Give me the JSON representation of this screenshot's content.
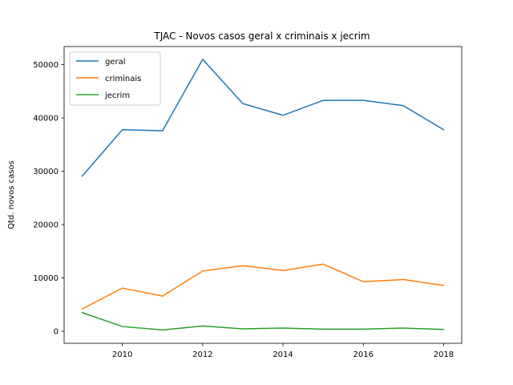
{
  "chart_data": {
    "type": "line",
    "title": "TJAC - Novos casos geral x criminais x jecrim",
    "xlabel": "",
    "ylabel": "Qtd. novos casos",
    "x": [
      2009,
      2010,
      2011,
      2012,
      2013,
      2014,
      2015,
      2016,
      2017,
      2018
    ],
    "xticks": [
      2010,
      2012,
      2014,
      2016,
      2018
    ],
    "yticks": [
      0,
      10000,
      20000,
      30000,
      40000,
      50000
    ],
    "xlim": [
      2008.55,
      2018.45
    ],
    "ylim": [
      -2250,
      53400
    ],
    "grid": false,
    "legend_position": "top-left",
    "series": [
      {
        "name": "geral",
        "color": "#1f77b4",
        "values": [
          29100,
          37800,
          37600,
          51000,
          42700,
          40500,
          43300,
          43300,
          42300,
          37800
        ]
      },
      {
        "name": "criminais",
        "color": "#ff7f0e",
        "values": [
          4200,
          8100,
          6600,
          11300,
          12300,
          11400,
          12600,
          9300,
          9700,
          8600
        ]
      },
      {
        "name": "jecrim",
        "color": "#2ca02c",
        "values": [
          3500,
          900,
          250,
          1000,
          450,
          600,
          400,
          400,
          600,
          350
        ]
      }
    ]
  }
}
